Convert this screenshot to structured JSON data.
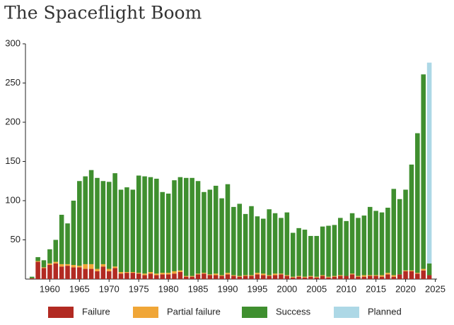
{
  "chart_data": {
    "type": "stacked_bar",
    "title": "The Spaceflight Boom",
    "x": [
      1957,
      1958,
      1959,
      1960,
      1961,
      1962,
      1963,
      1964,
      1965,
      1966,
      1967,
      1968,
      1969,
      1970,
      1971,
      1972,
      1973,
      1974,
      1975,
      1976,
      1977,
      1978,
      1979,
      1980,
      1981,
      1982,
      1983,
      1984,
      1985,
      1986,
      1987,
      1988,
      1989,
      1990,
      1991,
      1992,
      1993,
      1994,
      1995,
      1996,
      1997,
      1998,
      1999,
      2000,
      2001,
      2002,
      2003,
      2004,
      2005,
      2006,
      2007,
      2008,
      2009,
      2010,
      2011,
      2012,
      2013,
      2014,
      2015,
      2016,
      2017,
      2018,
      2019,
      2020,
      2021,
      2022,
      2023,
      2024
    ],
    "series": [
      {
        "name": "Failure",
        "color": "#b22a22",
        "values": [
          1,
          22,
          14,
          18,
          20,
          16,
          17,
          15,
          15,
          13,
          13,
          10,
          16,
          10,
          14,
          7,
          8,
          8,
          7,
          5,
          7,
          5,
          6,
          6,
          7,
          9,
          3,
          3,
          6,
          7,
          5,
          5,
          4,
          6,
          4,
          3,
          4,
          4,
          6,
          5,
          4,
          5,
          6,
          4,
          2,
          3,
          2,
          3,
          2,
          4,
          2,
          3,
          4,
          4,
          6,
          3,
          3,
          4,
          4,
          3,
          6,
          3,
          6,
          10,
          10,
          7,
          11,
          5
        ]
      },
      {
        "name": "Partial failure",
        "color": "#f0a637",
        "values": [
          0,
          1,
          1,
          2,
          2,
          3,
          2,
          3,
          2,
          6,
          6,
          3,
          3,
          3,
          2,
          2,
          1,
          1,
          1,
          2,
          2,
          2,
          2,
          2,
          3,
          2,
          1,
          1,
          1,
          1,
          1,
          2,
          1,
          2,
          1,
          1,
          1,
          1,
          2,
          2,
          1,
          2,
          1,
          1,
          1,
          1,
          1,
          1,
          1,
          1,
          1,
          1,
          1,
          0,
          1,
          1,
          2,
          1,
          1,
          2,
          2,
          2,
          0,
          1,
          1,
          1,
          2,
          0
        ]
      },
      {
        "name": "Success",
        "color": "#3f8f2f",
        "values": [
          2,
          5,
          9,
          18,
          28,
          63,
          52,
          82,
          108,
          112,
          120,
          116,
          106,
          111,
          119,
          105,
          108,
          105,
          124,
          124,
          121,
          121,
          103,
          101,
          116,
          119,
          125,
          125,
          118,
          103,
          108,
          112,
          98,
          113,
          87,
          92,
          78,
          88,
          72,
          70,
          84,
          77,
          71,
          80,
          56,
          61,
          60,
          51,
          52,
          62,
          65,
          65,
          73,
          70,
          77,
          74,
          76,
          87,
          82,
          80,
          83,
          110,
          96,
          103,
          135,
          178,
          248,
          15
        ]
      },
      {
        "name": "Planned",
        "color": "#add8e6",
        "values": [
          null,
          null,
          null,
          null,
          null,
          null,
          null,
          null,
          null,
          null,
          null,
          null,
          null,
          null,
          null,
          null,
          null,
          null,
          null,
          null,
          null,
          null,
          null,
          null,
          null,
          null,
          null,
          null,
          null,
          null,
          null,
          null,
          null,
          null,
          null,
          null,
          null,
          null,
          null,
          null,
          null,
          null,
          null,
          null,
          null,
          null,
          null,
          null,
          null,
          null,
          null,
          null,
          null,
          null,
          null,
          null,
          null,
          null,
          null,
          null,
          null,
          null,
          null,
          null,
          null,
          null,
          null,
          256
        ]
      }
    ],
    "xlim": [
      1955.9,
      2025.3
    ],
    "xticks": [
      1960,
      1965,
      1970,
      1975,
      1980,
      1985,
      1990,
      1995,
      2000,
      2005,
      2010,
      2015,
      2020,
      2025
    ],
    "ylim": [
      0,
      300
    ],
    "yticks": [
      50,
      100,
      150,
      200,
      250,
      300
    ],
    "legend": "bottom"
  }
}
